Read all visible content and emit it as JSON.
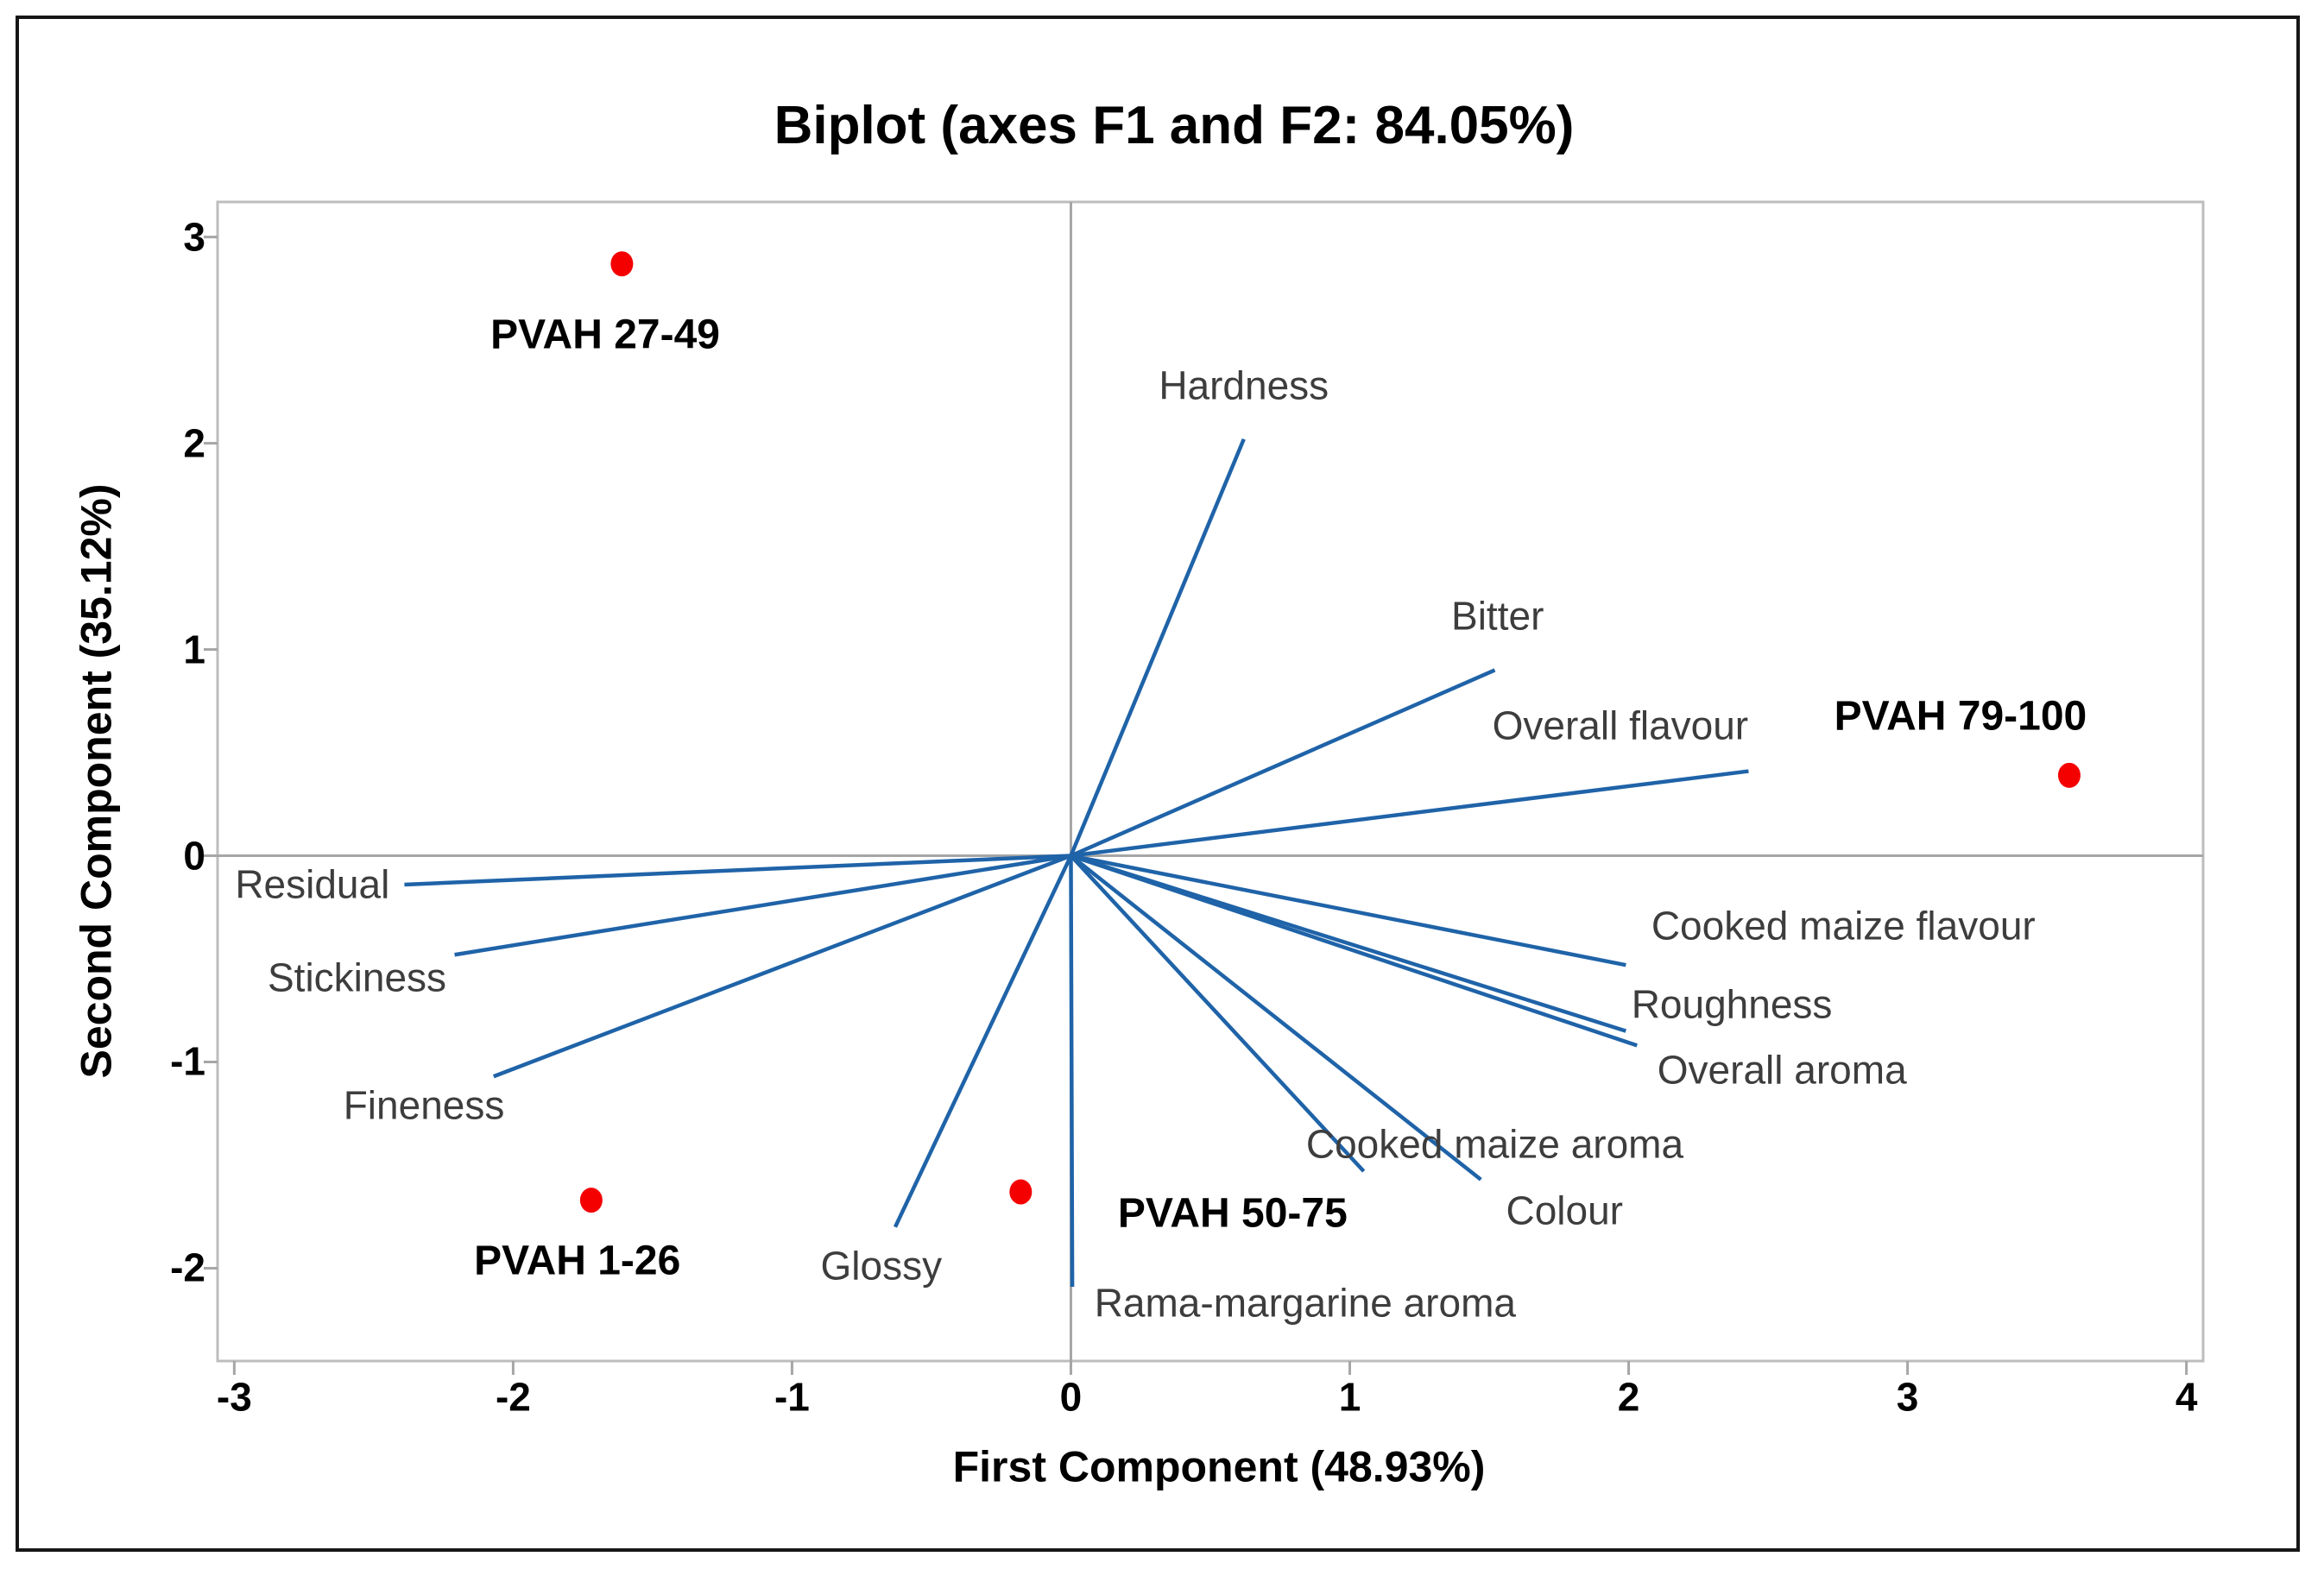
{
  "figure": {
    "background": "#ffffff",
    "border_color": "#161616"
  },
  "chart_data": {
    "type": "scatter",
    "variant": "pca_biplot",
    "title": "Biplot (axes F1 and F2: 84.05%)",
    "xlabel": "First Component (48.93%)",
    "ylabel": "Second Component (35.12%)",
    "xlim": [
      -3.06,
      4.06
    ],
    "ylim": [
      -2.45,
      3.17
    ],
    "x_ticks": [
      "-3",
      "-2",
      "-1",
      "0",
      "1",
      "2",
      "3",
      "4"
    ],
    "y_ticks": [
      "3",
      "2",
      "1",
      "0",
      "-1",
      "-2"
    ],
    "x_tick_values": [
      -3,
      -2,
      -1,
      0,
      1,
      2,
      3,
      4
    ],
    "y_tick_values": [
      3,
      2,
      1,
      0,
      -1,
      -2
    ],
    "grid": false,
    "legend": "none",
    "colors": {
      "vector": "#1f63a8",
      "observation": "#f40000",
      "axis_line": "#a6a6a6",
      "plot_border": "#bdbdbd",
      "variable_label": "#3d3d3d",
      "text": "#000000"
    },
    "vectors": [
      {
        "name": "Hardness",
        "x": 0.62,
        "y": 2.02,
        "label_x": 0.62,
        "label_y": 2.28
      },
      {
        "name": "Bitter",
        "x": 1.52,
        "y": 0.9,
        "label_x": 1.53,
        "label_y": 1.16
      },
      {
        "name": "Overall flavour",
        "x": 2.43,
        "y": 0.41,
        "label_x": 1.97,
        "label_y": 0.63
      },
      {
        "name": "Cooked maize flavour",
        "x": 1.99,
        "y": -0.53,
        "label_x": 2.77,
        "label_y": -0.34
      },
      {
        "name": "Roughness",
        "x": 1.99,
        "y": -0.85,
        "label_x": 2.37,
        "label_y": -0.72
      },
      {
        "name": "Overall aroma",
        "x": 2.03,
        "y": -0.92,
        "label_x": 2.55,
        "label_y": -1.04
      },
      {
        "name": "Cooked maize aroma",
        "x": 1.05,
        "y": -1.53,
        "label_x": 1.52,
        "label_y": -1.4
      },
      {
        "name": "Colour",
        "x": 1.47,
        "y": -1.57,
        "label_x": 1.77,
        "label_y": -1.72
      },
      {
        "name": "Rama-margarine aroma",
        "x": 0.005,
        "y": -2.09,
        "label_x": 0.84,
        "label_y": -2.17
      },
      {
        "name": "Glossy",
        "x": -0.63,
        "y": -1.8,
        "label_x": -0.68,
        "label_y": -1.99
      },
      {
        "name": "Fineness",
        "x": -2.07,
        "y": -1.07,
        "label_x": -2.32,
        "label_y": -1.21
      },
      {
        "name": "Stickiness",
        "x": -2.21,
        "y": -0.48,
        "label_x": -2.56,
        "label_y": -0.59
      },
      {
        "name": "Residual",
        "x": -2.39,
        "y": -0.14,
        "label_x": -2.72,
        "label_y": -0.14
      }
    ],
    "observations": [
      {
        "name": "PVAH 27-49",
        "x": -1.61,
        "y": 2.87,
        "label_x": -1.67,
        "label_y": 2.52
      },
      {
        "name": "PVAH 79-100",
        "x": 3.58,
        "y": 0.39,
        "label_x": 3.19,
        "label_y": 0.67
      },
      {
        "name": "PVAH 1-26",
        "x": -1.72,
        "y": -1.67,
        "label_x": -1.77,
        "label_y": -1.97
      },
      {
        "name": "PVAH 50-75",
        "x": -0.18,
        "y": -1.63,
        "label_x": 0.58,
        "label_y": -1.74
      }
    ]
  }
}
